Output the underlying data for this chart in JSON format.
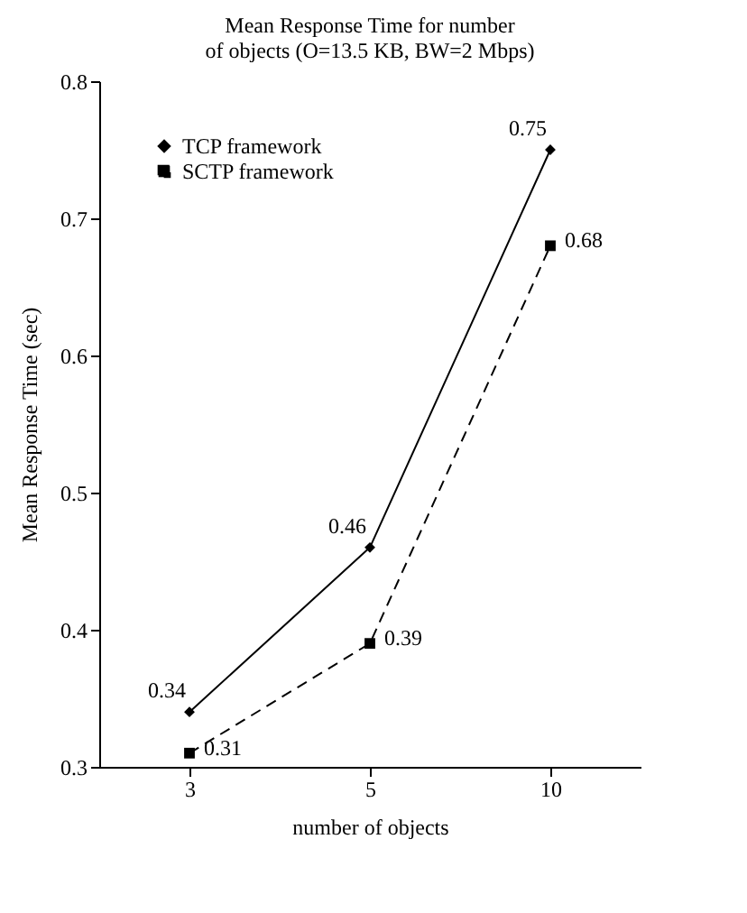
{
  "chart_data": {
    "type": "line",
    "title": "Mean Response Time for number\nof objects (O=13.5 KB, BW=2 Mbps)",
    "xlabel": "number of objects",
    "ylabel": "Mean Response Time (sec)",
    "categories": [
      "3",
      "5",
      "10"
    ],
    "series": [
      {
        "name": "TCP framework",
        "color": "#000000",
        "values": [
          0.34,
          0.46,
          0.75
        ],
        "marker": "diamond",
        "line_style": "solid"
      },
      {
        "name": "SCTP framework",
        "color": "#000000",
        "values": [
          0.31,
          0.39,
          0.68
        ],
        "marker": "square",
        "line_style": "dashed"
      }
    ],
    "ylim": [
      0.3,
      0.8
    ],
    "yticks": [
      0.3,
      0.4,
      0.5,
      0.6,
      0.7,
      0.8
    ],
    "legend": "top left",
    "data_labels": true
  }
}
